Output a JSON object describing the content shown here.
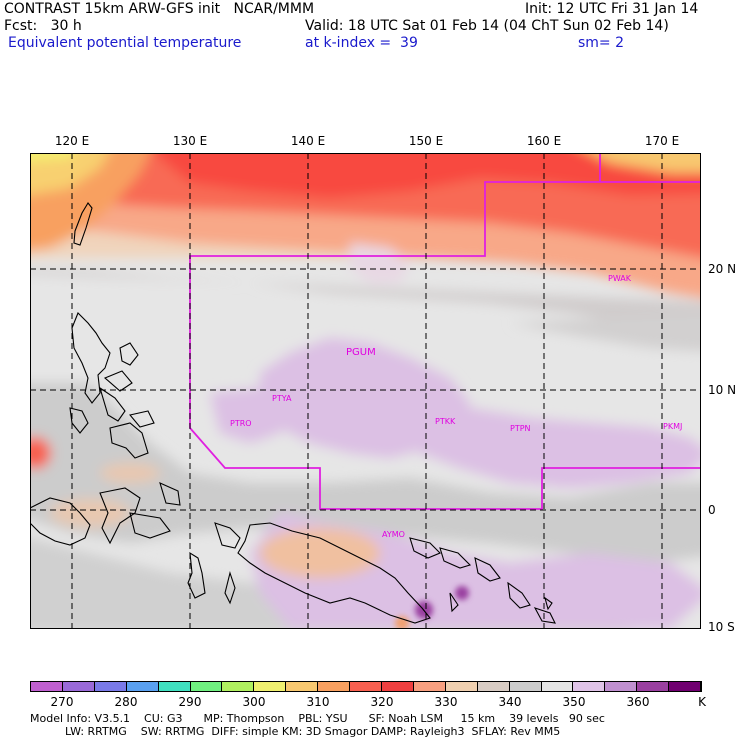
{
  "header": {
    "line1_left": "CONTRAST 15km ARW-GFS init   NCAR/MMM",
    "line1_right": "Init: 12 UTC Fri 31 Jan 14",
    "line2_left": "Fcst:   30 h",
    "line2_right": "Valid: 18 UTC Sat 01 Feb 14 (04 ChT Sun 02 Feb 14)",
    "line3_left": "Equivalent potential temperature",
    "line3_mid": "at k-index =  39",
    "line3_right": "sm= 2"
  },
  "map": {
    "lon_labels": [
      "120 E",
      "130 E",
      "140 E",
      "150 E",
      "160 E",
      "170 E"
    ],
    "lat_labels": [
      "20 N",
      "10 N",
      "0",
      "10 S"
    ],
    "stations": [
      "PWAK",
      "PGUM",
      "PTYA",
      "PTRO",
      "PTKK",
      "PTPN",
      "PKMJ",
      "AYMO"
    ]
  },
  "colorbar": {
    "labels": [
      "270",
      "280",
      "290",
      "300",
      "310",
      "320",
      "330",
      "340",
      "350",
      "360",
      "K"
    ],
    "colors": [
      "#c060d0",
      "#9a6ad8",
      "#7a7ae8",
      "#5aa0f0",
      "#40e0c0",
      "#70f080",
      "#b0f060",
      "#f0f070",
      "#f8c870",
      "#f8a060",
      "#f86050",
      "#f04040",
      "#f8a080",
      "#f0d0b0",
      "#d8ccc4",
      "#cccccc",
      "#e4e4e4",
      "#e0c4e8",
      "#c090d0",
      "#9a40a0",
      "#700070"
    ]
  },
  "footer": {
    "line1": "Model Info: V3.5.1    CU: G3      MP: Thompson    PBL: YSU      SF: Noah LSM     15 km    39 levels   90 sec",
    "line2": "          LW: RRTMG    SW: RRTMG  DIFF: simple KM: 3D Smagor DAMP: Rayleigh3  SFLAY: Rev MM5"
  }
}
